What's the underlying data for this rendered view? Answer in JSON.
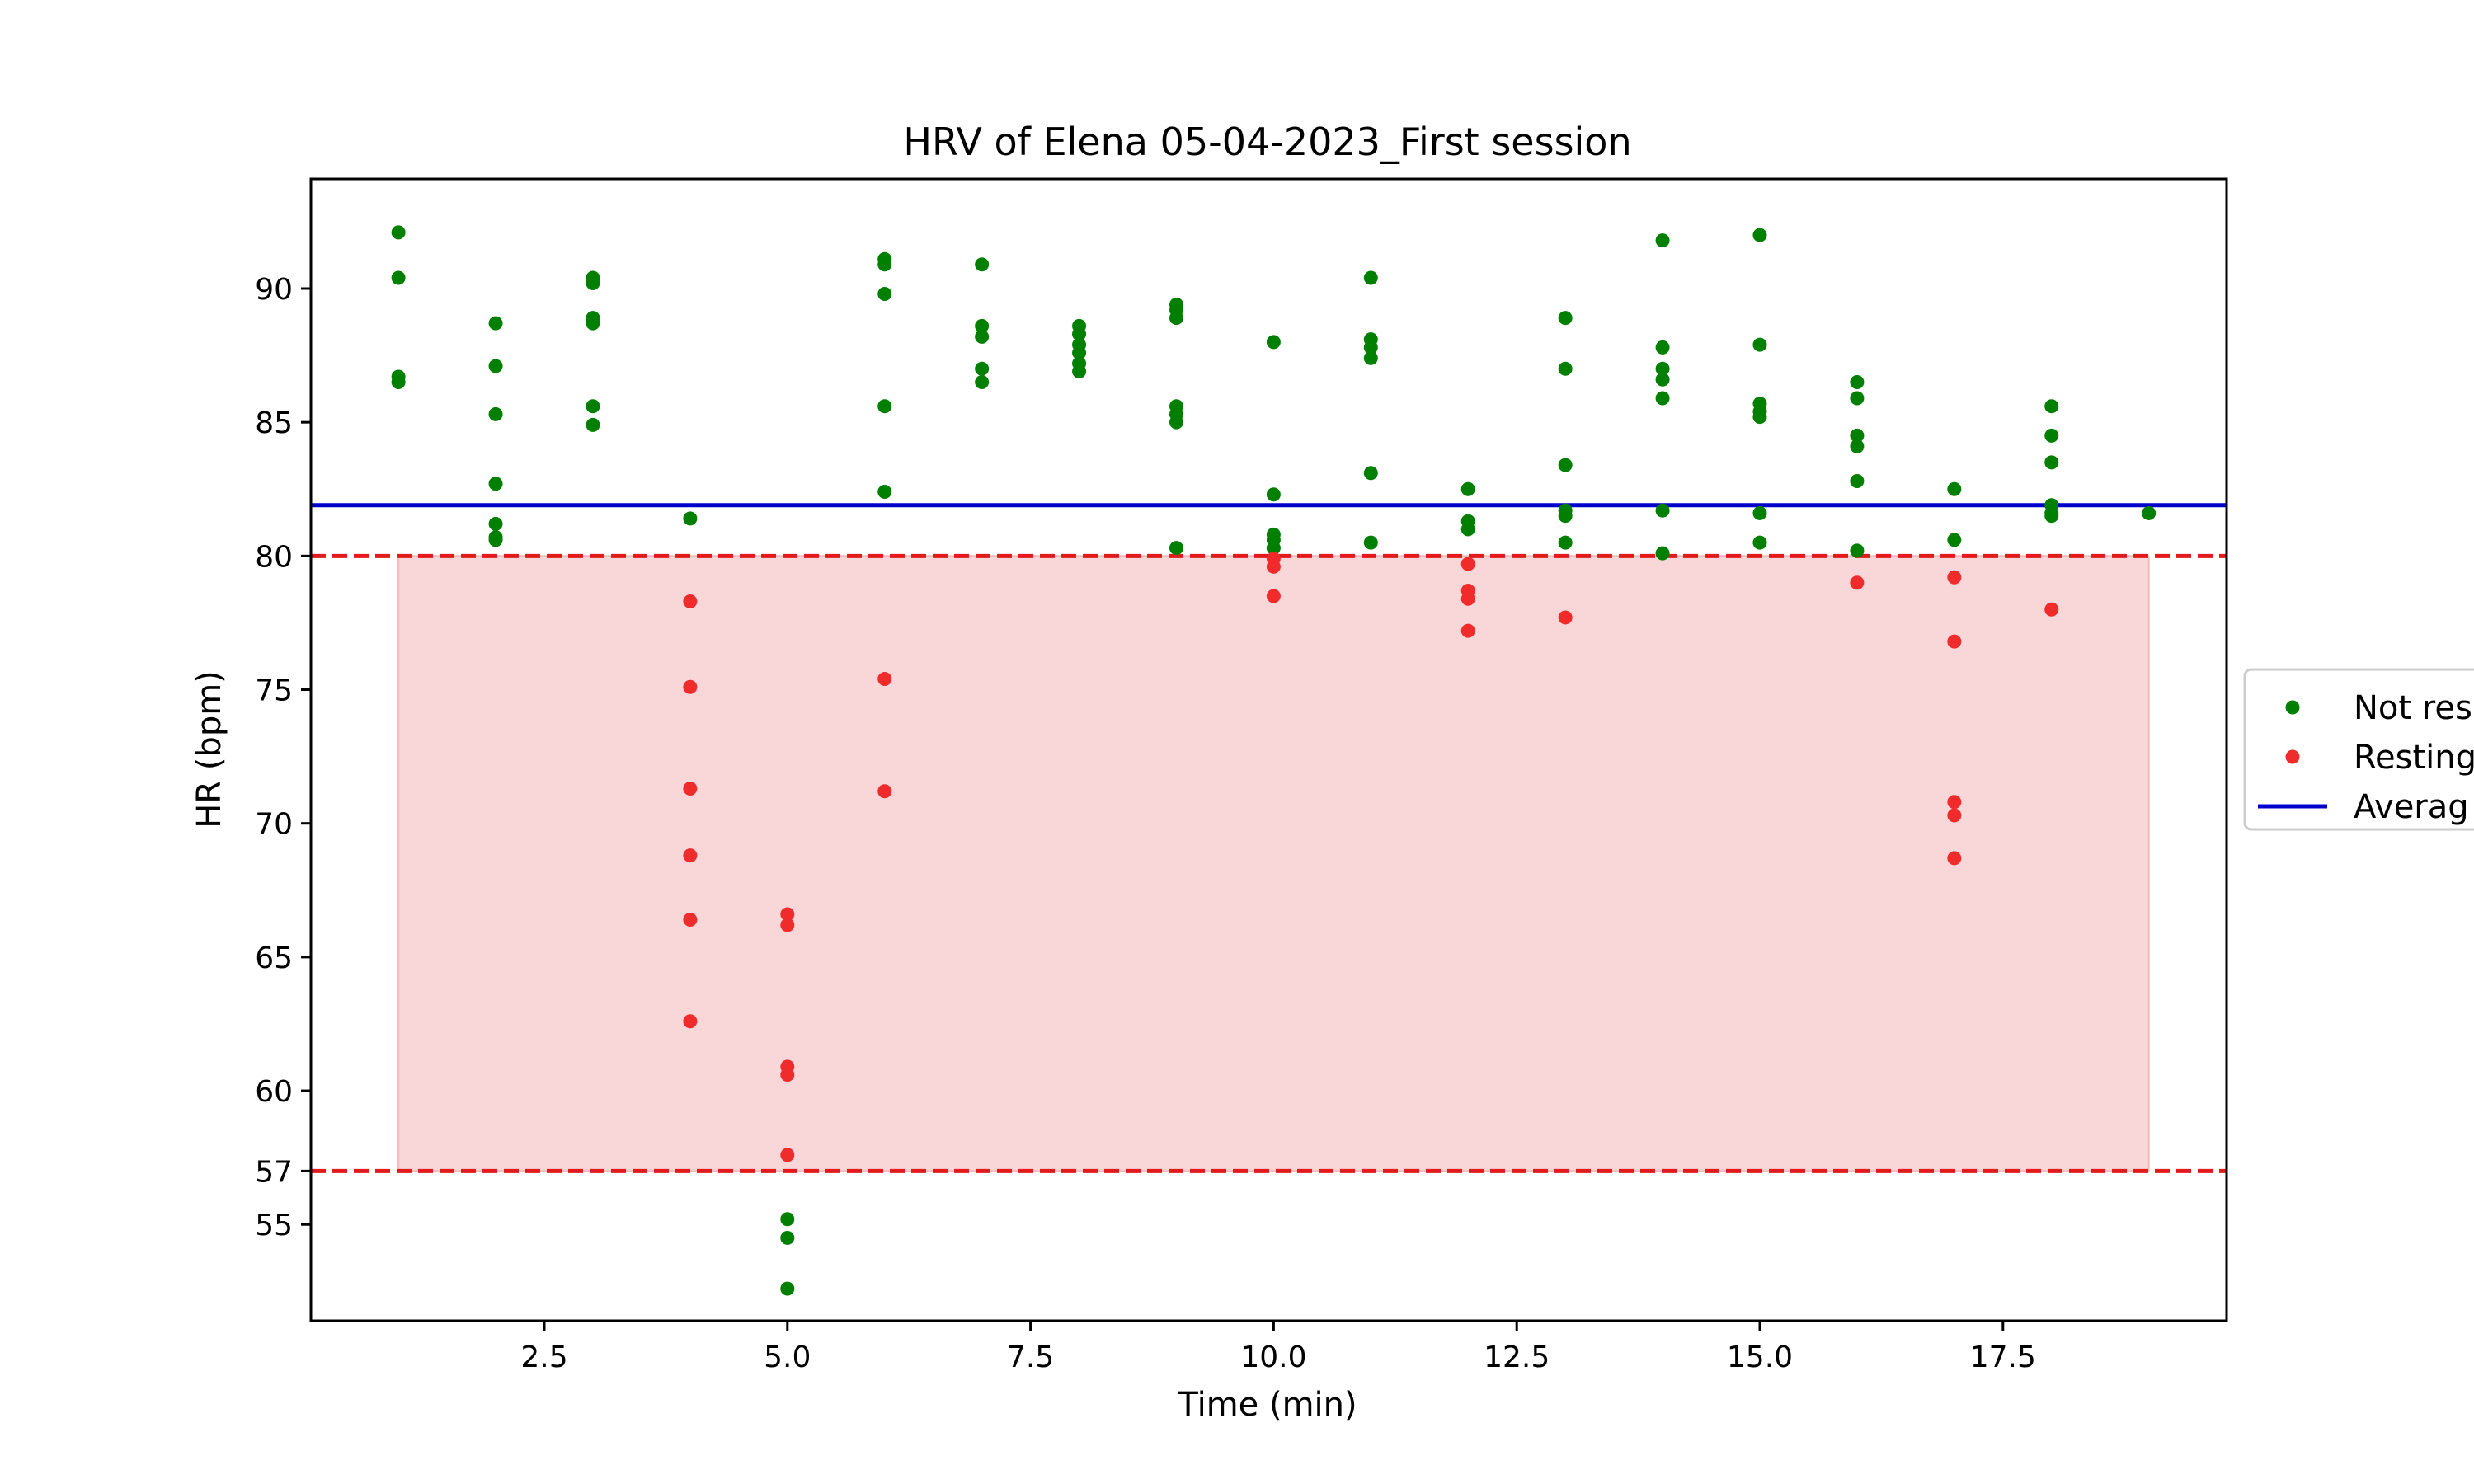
{
  "chart_data": {
    "type": "scatter",
    "title": "HRV of Elena 05-04-2023_First session",
    "xlabel": "Time (min)",
    "ylabel": "HR (bpm)",
    "xlim": [
      0.1,
      19.8
    ],
    "ylim": [
      51.4,
      94.1
    ],
    "x_ticks": [
      2.5,
      5.0,
      7.5,
      10.0,
      12.5,
      15.0,
      17.5
    ],
    "x_tick_labels": [
      "2.5",
      "5.0",
      "7.5",
      "10.0",
      "12.5",
      "15.0",
      "17.5"
    ],
    "y_ticks": [
      55,
      57,
      60,
      65,
      70,
      75,
      80,
      85,
      90
    ],
    "y_tick_labels": [
      "55",
      "57",
      "60",
      "65",
      "70",
      "75",
      "80",
      "85",
      "90"
    ],
    "grid": false,
    "legend_position": "right, clipped at image edge",
    "legend_entries": [
      "Not res",
      "Resting",
      "Averag"
    ],
    "resting_zone": {
      "lower": 57,
      "upper": 80,
      "x_start": 1,
      "x_end": 19,
      "fill_color": "#f9d7d8",
      "line_color": "#e31a1c"
    },
    "average_line": {
      "value": 81.9,
      "color": "#0000cc"
    },
    "series": [
      {
        "name": "Not resting",
        "color": "#007f00",
        "points": [
          [
            1,
            92.1
          ],
          [
            1,
            90.4
          ],
          [
            1,
            86.7
          ],
          [
            1,
            86.5
          ],
          [
            2,
            88.7
          ],
          [
            2,
            87.1
          ],
          [
            2,
            85.3
          ],
          [
            2,
            82.7
          ],
          [
            2,
            81.2
          ],
          [
            2,
            80.7
          ],
          [
            2,
            80.6
          ],
          [
            3,
            90.4
          ],
          [
            3,
            90.2
          ],
          [
            3,
            88.9
          ],
          [
            3,
            88.7
          ],
          [
            3,
            85.6
          ],
          [
            3,
            84.9
          ],
          [
            4,
            81.4
          ],
          [
            5,
            55.2
          ],
          [
            5,
            54.5
          ],
          [
            5,
            52.6
          ],
          [
            6,
            91.1
          ],
          [
            6,
            90.9
          ],
          [
            6,
            89.8
          ],
          [
            6,
            85.6
          ],
          [
            6,
            82.4
          ],
          [
            7,
            90.9
          ],
          [
            7,
            88.6
          ],
          [
            7,
            88.2
          ],
          [
            7,
            87.0
          ],
          [
            7,
            86.5
          ],
          [
            8,
            88.6
          ],
          [
            8,
            88.3
          ],
          [
            8,
            87.9
          ],
          [
            8,
            87.6
          ],
          [
            8,
            87.2
          ],
          [
            8,
            86.9
          ],
          [
            9,
            89.4
          ],
          [
            9,
            89.2
          ],
          [
            9,
            88.9
          ],
          [
            9,
            85.6
          ],
          [
            9,
            85.3
          ],
          [
            9,
            85.0
          ],
          [
            9,
            80.3
          ],
          [
            10,
            88.0
          ],
          [
            10,
            82.3
          ],
          [
            10,
            80.8
          ],
          [
            10,
            80.6
          ],
          [
            10,
            80.3
          ],
          [
            11,
            90.4
          ],
          [
            11,
            88.1
          ],
          [
            11,
            87.8
          ],
          [
            11,
            87.4
          ],
          [
            11,
            83.1
          ],
          [
            11,
            80.5
          ],
          [
            12,
            82.5
          ],
          [
            12,
            81.3
          ],
          [
            12,
            81.0
          ],
          [
            13,
            88.9
          ],
          [
            13,
            87.0
          ],
          [
            13,
            83.4
          ],
          [
            13,
            81.7
          ],
          [
            13,
            81.5
          ],
          [
            13,
            80.5
          ],
          [
            14,
            91.8
          ],
          [
            14,
            87.8
          ],
          [
            14,
            87.0
          ],
          [
            14,
            86.6
          ],
          [
            14,
            85.9
          ],
          [
            14,
            81.7
          ],
          [
            14,
            80.1
          ],
          [
            15,
            92.0
          ],
          [
            15,
            87.9
          ],
          [
            15,
            85.7
          ],
          [
            15,
            85.4
          ],
          [
            15,
            85.2
          ],
          [
            15,
            81.6
          ],
          [
            15,
            80.5
          ],
          [
            16,
            86.5
          ],
          [
            16,
            85.9
          ],
          [
            16,
            84.5
          ],
          [
            16,
            84.1
          ],
          [
            16,
            82.8
          ],
          [
            16,
            80.2
          ],
          [
            17,
            82.5
          ],
          [
            17,
            80.6
          ],
          [
            18,
            85.6
          ],
          [
            18,
            84.5
          ],
          [
            18,
            83.5
          ],
          [
            18,
            81.9
          ],
          [
            18,
            81.6
          ],
          [
            18,
            81.5
          ],
          [
            19,
            81.6
          ]
        ]
      },
      {
        "name": "Resting",
        "color": "#ef2b2b",
        "points": [
          [
            4,
            78.3
          ],
          [
            4,
            75.1
          ],
          [
            4,
            71.3
          ],
          [
            4,
            68.8
          ],
          [
            4,
            66.4
          ],
          [
            4,
            62.6
          ],
          [
            5,
            66.6
          ],
          [
            5,
            66.2
          ],
          [
            5,
            60.9
          ],
          [
            5,
            60.6
          ],
          [
            5,
            57.6
          ],
          [
            6,
            75.4
          ],
          [
            6,
            71.2
          ],
          [
            10,
            79.9
          ],
          [
            10,
            79.6
          ],
          [
            10,
            78.5
          ],
          [
            12,
            79.7
          ],
          [
            12,
            78.7
          ],
          [
            12,
            78.4
          ],
          [
            12,
            77.2
          ],
          [
            13,
            77.7
          ],
          [
            16,
            79.0
          ],
          [
            17,
            79.2
          ],
          [
            17,
            76.8
          ],
          [
            17,
            70.8
          ],
          [
            17,
            70.3
          ],
          [
            17,
            68.7
          ],
          [
            18,
            78.0
          ]
        ]
      }
    ]
  }
}
